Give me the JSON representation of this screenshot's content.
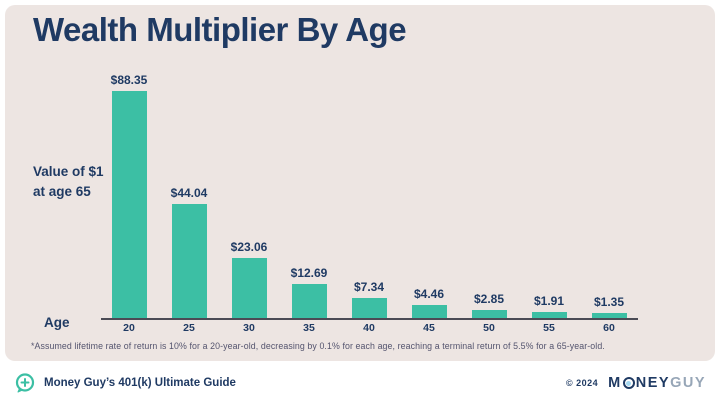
{
  "title": "Wealth Multiplier By Age",
  "y_axis_note_line1": "Value of $1",
  "y_axis_note_line2": "at age 65",
  "age_label": "Age",
  "footnote": "*Assumed lifetime rate of return is 10% for a 20-year-old, decreasing by 0.1% for each age, reaching a terminal return of 5.5% for a 65-year-old.",
  "footer": {
    "left_text": "Money Guy’s 401(k) Ultimate Guide",
    "copyright": "© 2024",
    "brand_m": "M",
    "brand_ney": "NEY",
    "brand_guy": "GUY"
  },
  "colors": {
    "background_card": "#EDE5E2",
    "navy": "#1F3A63",
    "bar_teal": "#3CBFA4",
    "axis": "#4b4b55",
    "brand_gray": "#97A6B7",
    "logo_dot_blue": "#A5D8F0"
  },
  "chart_data": {
    "type": "bar",
    "title": "Wealth Multiplier By Age",
    "xlabel": "Age",
    "ylabel": "Value of $1 at age 65",
    "categories": [
      "20",
      "25",
      "30",
      "35",
      "40",
      "45",
      "50",
      "55",
      "60"
    ],
    "values": [
      88.35,
      44.04,
      23.06,
      12.69,
      7.34,
      4.46,
      2.85,
      1.91,
      1.35
    ],
    "value_labels": [
      "$88.35",
      "$44.04",
      "$23.06",
      "$12.69",
      "$7.34",
      "$4.46",
      "$2.85",
      "$1.91",
      "$1.35"
    ],
    "ylim": [
      0,
      90
    ],
    "grid": false,
    "legend": false,
    "bar_color": "#3CBFA4",
    "annotation": "Assumed lifetime rate of return is 10% for a 20-year-old, decreasing by 0.1% for each age, reaching a terminal return of 5.5% for a 65-year-old."
  }
}
